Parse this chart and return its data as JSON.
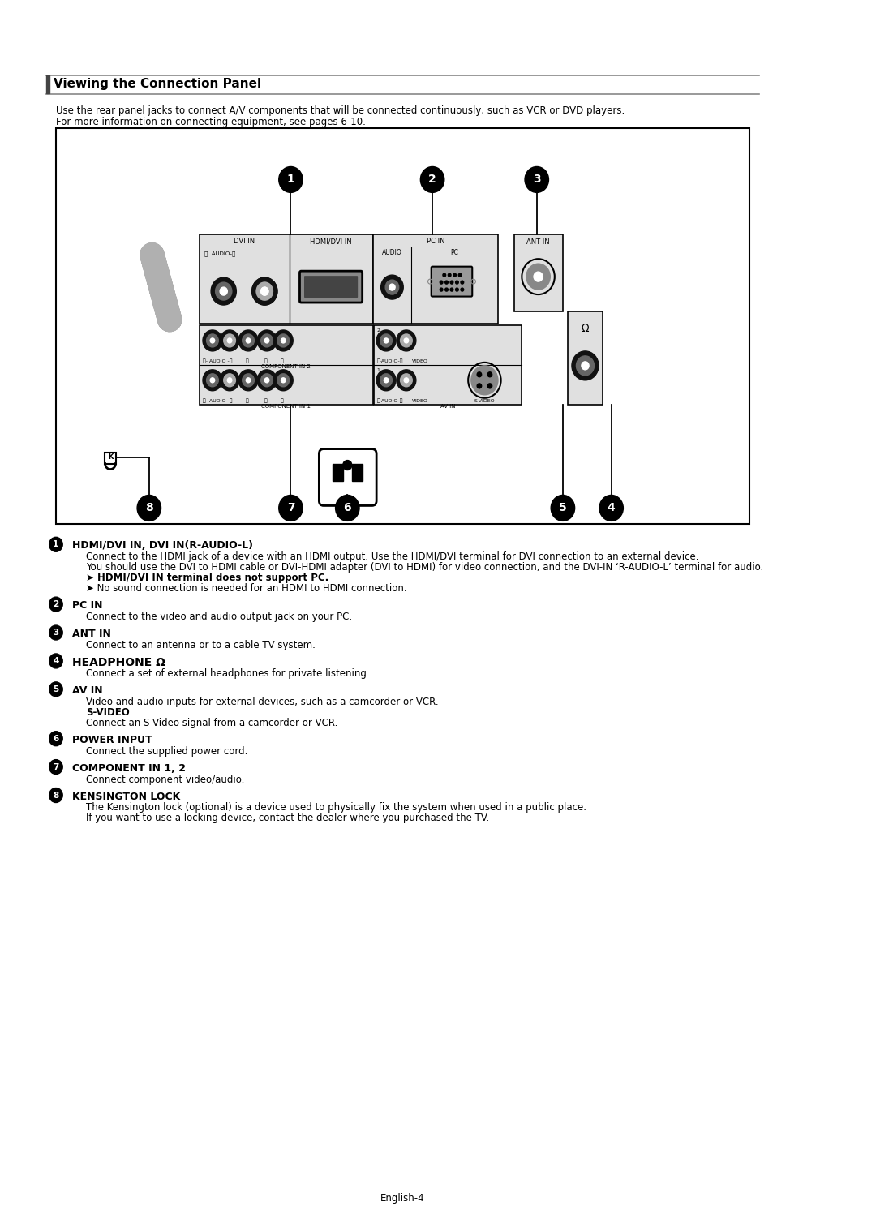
{
  "title": "Viewing the Connection Panel",
  "subtitle_line1": "Use the rear panel jacks to connect A/V components that will be connected continuously, such as VCR or DVD players.",
  "subtitle_line2": "For more information on connecting equipment, see pages 6-10.",
  "page_label": "English-4",
  "items": [
    {
      "num": "1",
      "heading": "HDMI/DVI IN, DVI IN(R-AUDIO-L)",
      "lines": [
        {
          "text": "Connect to the HDMI jack of a device with an HDMI output. Use the HDMI/DVI terminal for DVI connection to an external device.",
          "bold": false,
          "indent": true
        },
        {
          "text": "You should use the DVI to HDMI cable or DVI-HDMI adapter (DVI to HDMI) for video connection, and the DVI-IN ‘R-AUDIO-L’ terminal for audio.",
          "bold": false,
          "indent": true
        },
        {
          "text": "➤ HDMI/DVI IN terminal does not support PC.",
          "bold": true,
          "indent": true
        },
        {
          "text": "➤ No sound connection is needed for an HDMI to HDMI connection.",
          "bold": false,
          "indent": true
        }
      ]
    },
    {
      "num": "2",
      "heading": "PC IN",
      "lines": [
        {
          "text": "Connect to the video and audio output jack on your PC.",
          "bold": false,
          "indent": true
        }
      ]
    },
    {
      "num": "3",
      "heading": "ANT IN",
      "lines": [
        {
          "text": "Connect to an antenna or to a cable TV system.",
          "bold": false,
          "indent": true
        }
      ]
    },
    {
      "num": "4",
      "heading": "HEADPHONE Ω",
      "lines": [
        {
          "text": "Connect a set of external headphones for private listening.",
          "bold": false,
          "indent": true
        }
      ],
      "heading_large": true
    },
    {
      "num": "5",
      "heading": "AV IN",
      "lines": [
        {
          "text": "Video and audio inputs for external devices, such as a camcorder or VCR.",
          "bold": false,
          "indent": true
        },
        {
          "text": "S-VIDEO",
          "bold": true,
          "indent": true
        },
        {
          "text": "Connect an S-Video signal from a camcorder or VCR.",
          "bold": false,
          "indent": true
        }
      ]
    },
    {
      "num": "6",
      "heading": "POWER INPUT",
      "lines": [
        {
          "text": "Connect the supplied power cord.",
          "bold": false,
          "indent": true
        }
      ]
    },
    {
      "num": "7",
      "heading": "COMPONENT IN 1, 2",
      "lines": [
        {
          "text": "Connect component video/audio.",
          "bold": false,
          "indent": true
        }
      ]
    },
    {
      "num": "8",
      "heading": "KENSINGTON LOCK",
      "lines": [
        {
          "text": "The Kensington lock (optional) is a device used to physically fix the system when used in a public place.",
          "bold": false,
          "indent": true
        },
        {
          "text": "If you want to use a locking device, contact the dealer where you purchased the TV.",
          "bold": false,
          "indent": true
        }
      ]
    }
  ],
  "bg_color": "#ffffff",
  "box_color": "#000000",
  "panel_color": "#e8e8e8"
}
